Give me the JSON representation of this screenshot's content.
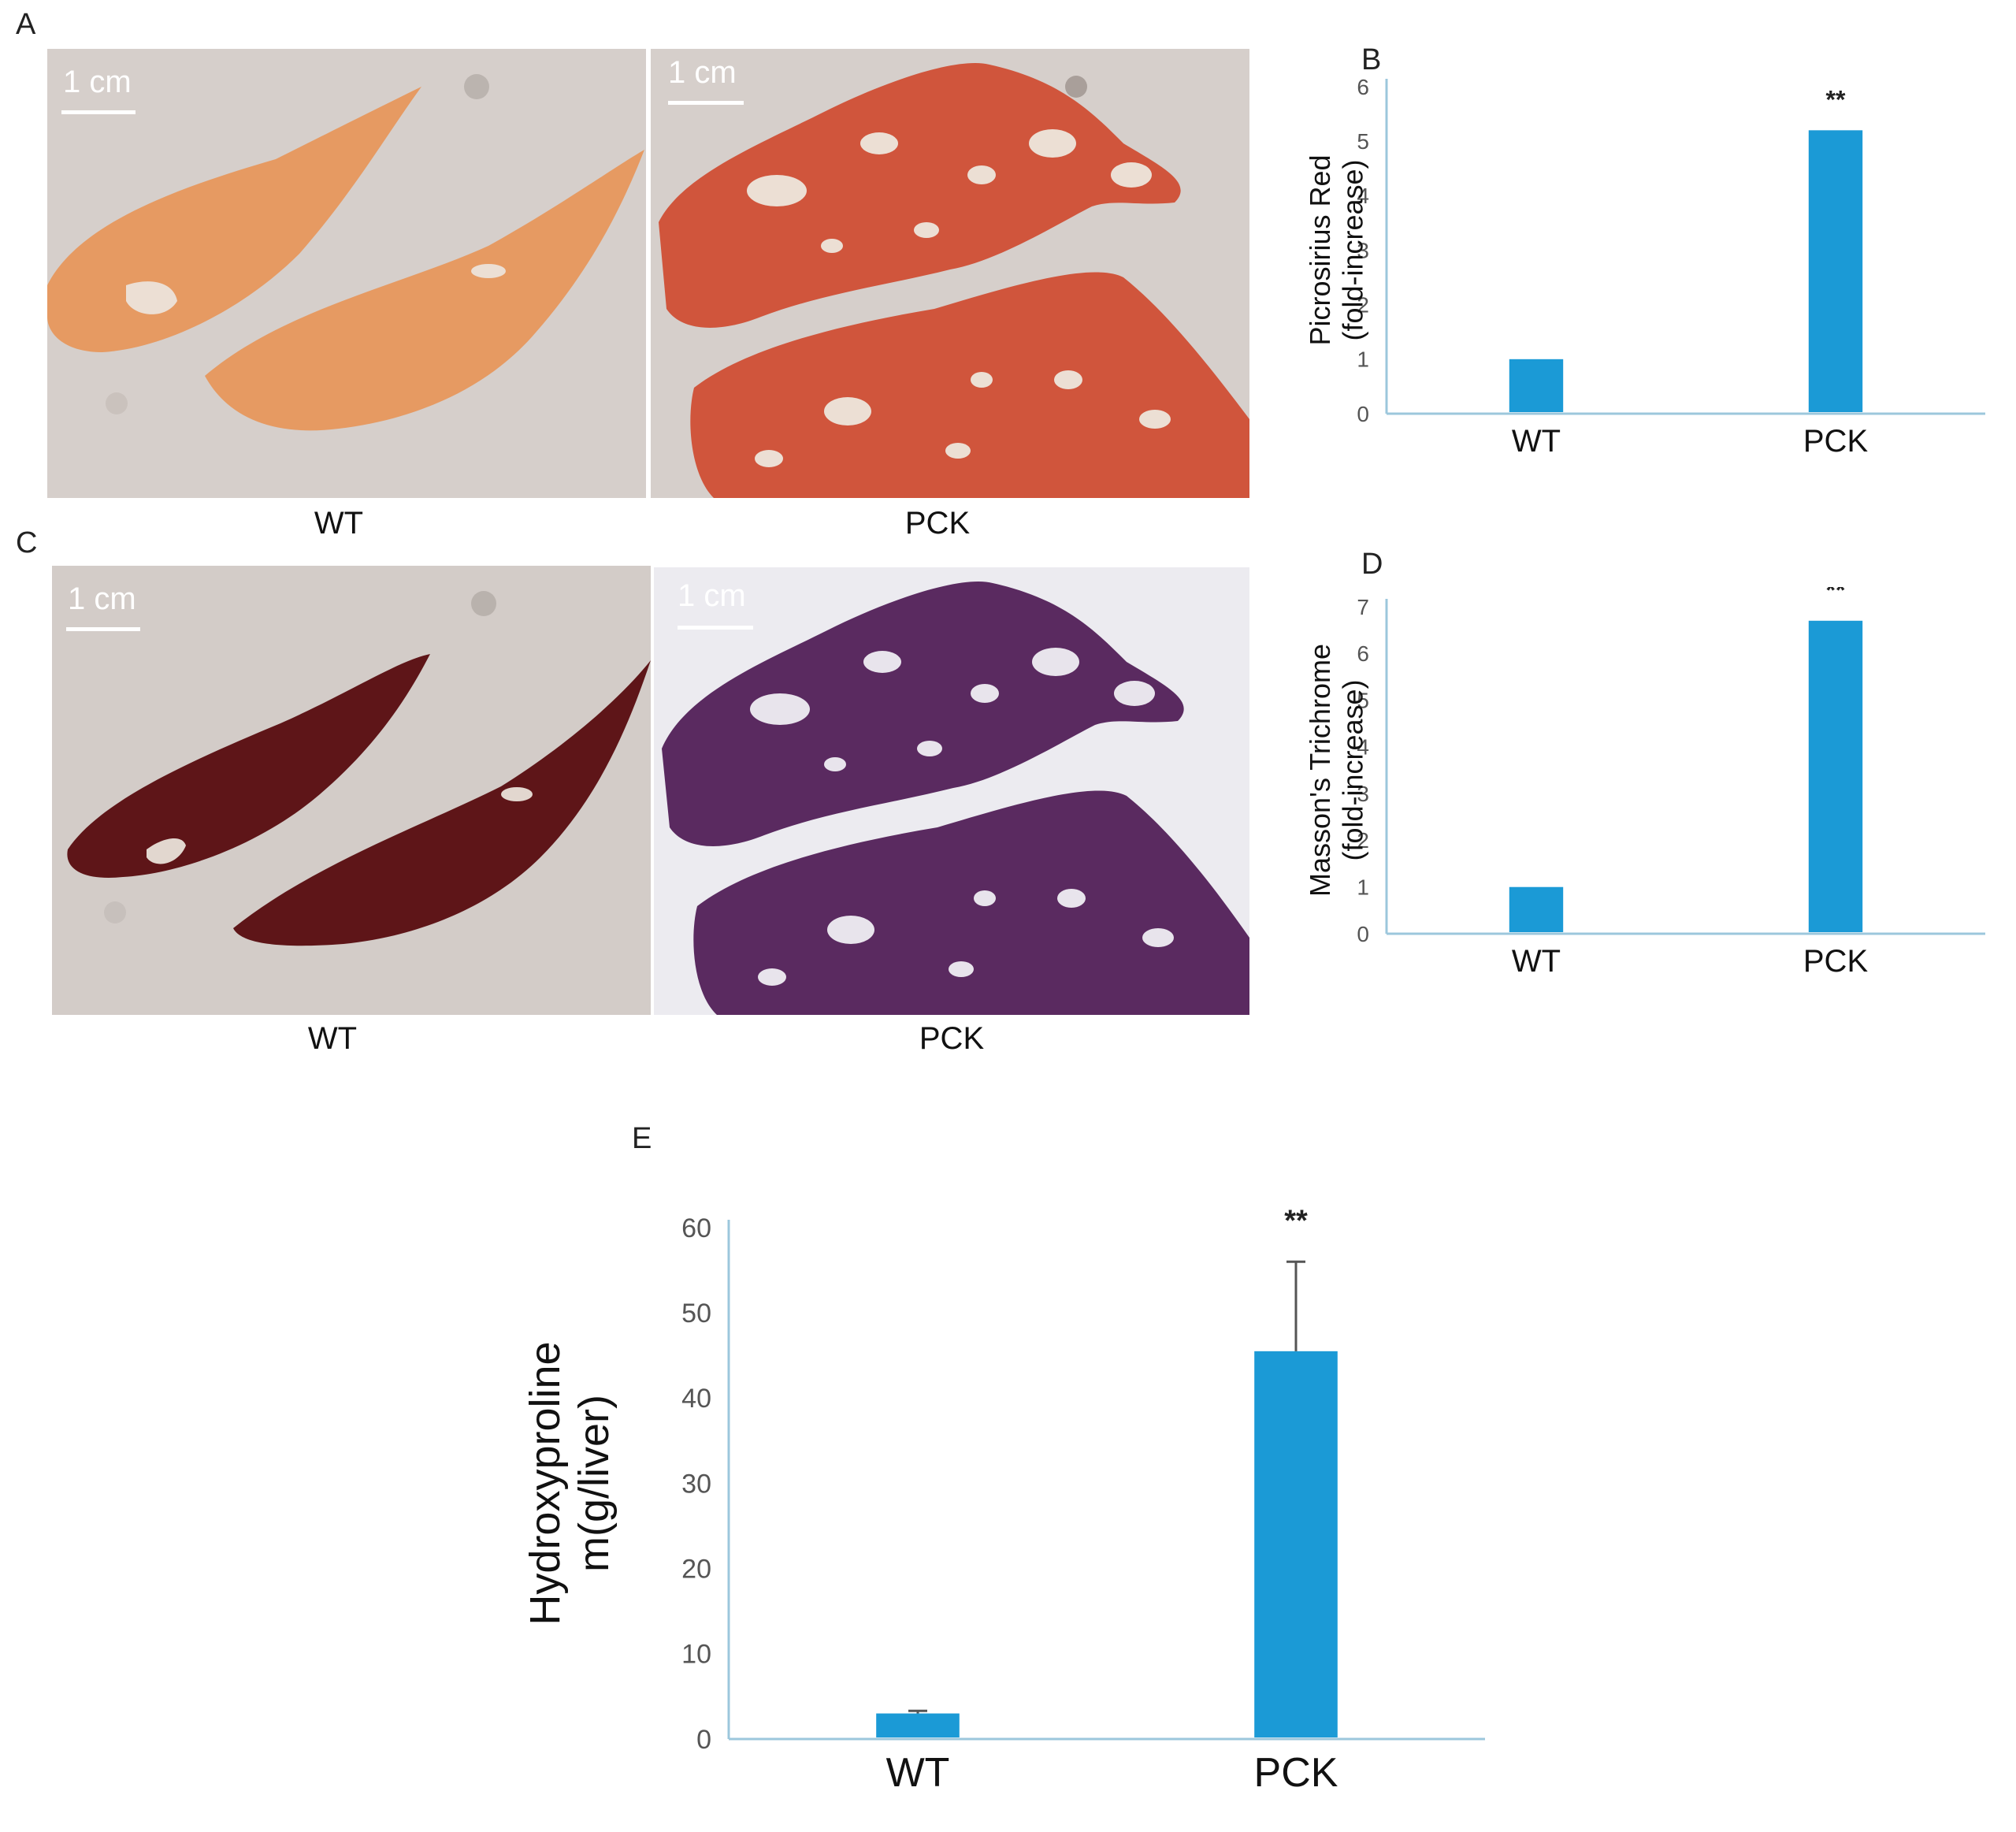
{
  "panels": {
    "a": {
      "letter": "A",
      "scale_left": "1 cm",
      "scale_right": "1 cm",
      "caption_left": "WT",
      "caption_right": "PCK"
    },
    "b": {
      "letter": "B"
    },
    "c": {
      "letter": "C",
      "scale_left": "1 cm",
      "scale_right": "1 cm",
      "caption_left": "WT",
      "caption_right": "PCK"
    },
    "d": {
      "letter": "D"
    },
    "e": {
      "letter": "E"
    }
  },
  "colors": {
    "bar": "#1b9ad6",
    "axis": "#9cc7dc",
    "picrosirius_tissue": "#e69a62",
    "picrosirius_fibrotic": "#d0553c",
    "trichrome_tissue": "#5e1518",
    "trichrome_fibrotic": "#5a2a60",
    "slide_bg": "#d6cfcb"
  },
  "chart_data": [
    {
      "id": "B",
      "type": "bar",
      "categories": [
        "WT",
        "PCK"
      ],
      "values": [
        1.0,
        5.2
      ],
      "ylabel_lines": [
        "Picrosirius Red",
        "(fold-increase)"
      ],
      "yticks": [
        "0",
        "1",
        "2",
        "3",
        "4",
        "5",
        "6"
      ],
      "ylim": [
        0,
        6
      ],
      "annotations": [
        "",
        "**"
      ],
      "grid": false
    },
    {
      "id": "D",
      "type": "bar",
      "categories": [
        "WT",
        "PCK"
      ],
      "values": [
        1.0,
        6.7
      ],
      "ylabel_lines": [
        "Masson's Trichrome",
        "(fold-increase)"
      ],
      "yticks": [
        "0",
        "1",
        "2",
        "3",
        "4",
        "5",
        "6",
        "7"
      ],
      "ylim": [
        0,
        7
      ],
      "annotations": [
        "",
        "**"
      ],
      "grid": false
    },
    {
      "id": "E",
      "type": "bar",
      "categories": [
        "WT",
        "PCK"
      ],
      "values": [
        3,
        45.5
      ],
      "errors": [
        0.3,
        10.5
      ],
      "ylabel_lines": [
        "Hydroxyproline",
        "m(g/liver)"
      ],
      "yticks": [
        "0",
        "10",
        "20",
        "30",
        "40",
        "50",
        "60"
      ],
      "ylim": [
        0,
        60
      ],
      "annotations": [
        "",
        "**"
      ],
      "grid": false
    }
  ]
}
